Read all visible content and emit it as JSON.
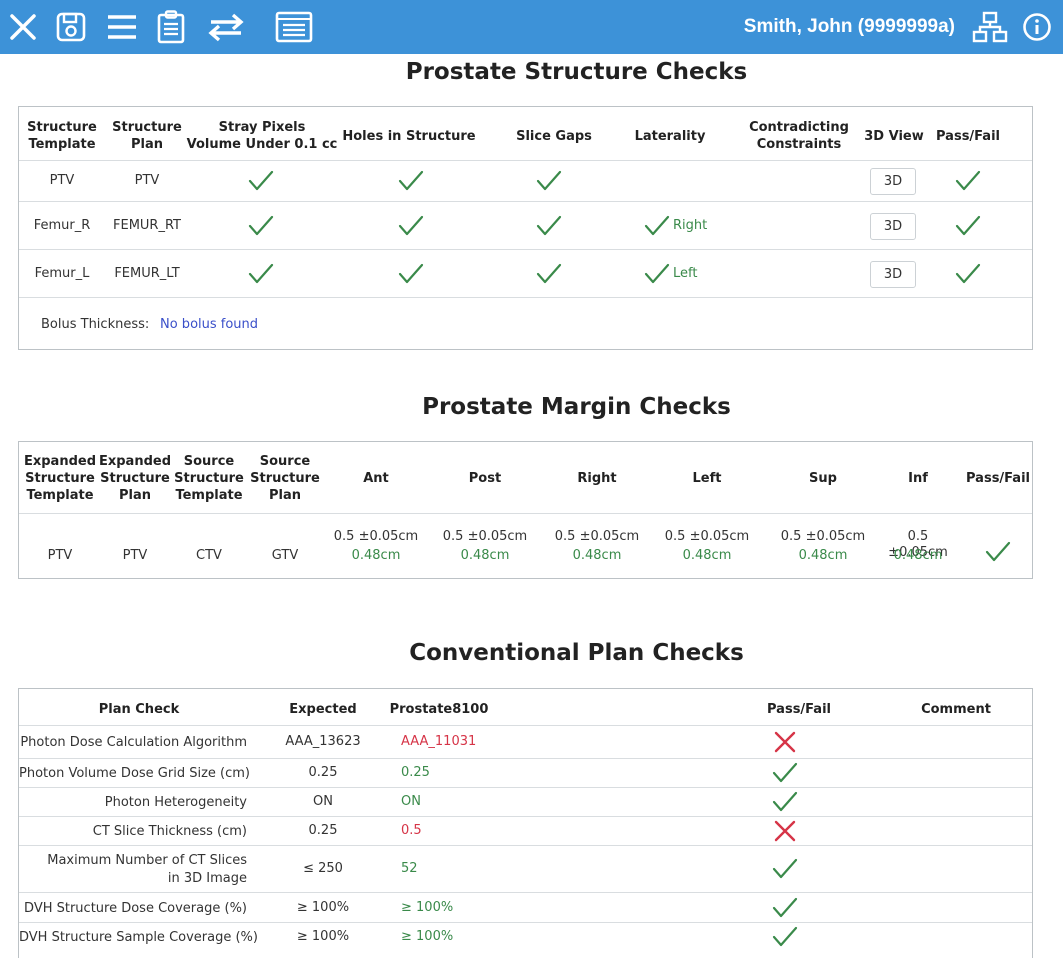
{
  "header": {
    "user": "Smith, John (9999999a)",
    "icons": [
      "close-icon",
      "save-icon",
      "menu-icon",
      "clipboard-icon",
      "swap-icon",
      "list-box-icon",
      "network-icon",
      "info-icon"
    ]
  },
  "structure": {
    "title": "Prostate Structure Checks",
    "headers": [
      "Structure\nTemplate",
      "Structure\nPlan",
      "Stray Pixels\nVolume Under 0.1 cc",
      "Holes in Structure",
      "Slice Gaps",
      "Laterality",
      "Contradicting\nConstraints",
      "3D View",
      "Pass/Fail"
    ],
    "rows": [
      {
        "template": "PTV",
        "plan": "PTV",
        "laterality": "",
        "button": "3D"
      },
      {
        "template": "Femur_R",
        "plan": "FEMUR_RT",
        "laterality": "Right",
        "button": "3D"
      },
      {
        "template": "Femur_L",
        "plan": "FEMUR_LT",
        "laterality": "Left",
        "button": "3D"
      }
    ],
    "bolus_label": "Bolus Thickness:",
    "bolus_value": "No bolus found"
  },
  "margin": {
    "title": "Prostate Margin Checks",
    "headers": [
      "Expanded\nStructure\nTemplate",
      "Expanded\nStructure\nPlan",
      "Source\nStructure\nTemplate",
      "Source\nStructure\nPlan",
      "Ant",
      "Post",
      "Right",
      "Left",
      "Sup",
      "Inf",
      "Pass/Fail"
    ],
    "row": {
      "cells": [
        "PTV",
        "PTV",
        "CTV",
        "GTV"
      ],
      "expected": [
        "0.5 ±0.05cm",
        "0.5 ±0.05cm",
        "0.5 ±0.05cm",
        "0.5 ±0.05cm",
        "0.5 ±0.05cm",
        "0.5 ±0.05cm"
      ],
      "actual": [
        "0.48cm",
        "0.48cm",
        "0.48cm",
        "0.48cm",
        "0.48cm",
        "0.48cm"
      ]
    }
  },
  "plan": {
    "title": "Conventional Plan Checks",
    "headers": [
      "Plan Check",
      "Expected",
      "Prostate8100",
      "Pass/Fail",
      "Comment"
    ],
    "rows": [
      {
        "check": "Photon Dose Calculation Algorithm",
        "expected": "AAA_13623",
        "value": "AAA_11031",
        "pass": false
      },
      {
        "check": "Photon Volume Dose Grid Size (cm)",
        "expected": "0.25",
        "value": "0.25",
        "pass": true
      },
      {
        "check": "Photon Heterogeneity",
        "expected": "ON",
        "value": "ON",
        "pass": true
      },
      {
        "check": "CT Slice Thickness (cm)",
        "expected": "0.25",
        "value": "0.5",
        "pass": false
      },
      {
        "check": "Maximum Number of CT Slices\nin 3D Image",
        "expected": "≤ 250",
        "value": "52",
        "pass": true
      },
      {
        "check": "DVH Structure Dose Coverage (%)",
        "expected": "≥ 100%",
        "value": "≥ 100%",
        "pass": true
      },
      {
        "check": "DVH Structure Sample Coverage (%)",
        "expected": "≥ 100%",
        "value": "≥ 100%",
        "pass": true
      }
    ]
  },
  "colors": {
    "header_bg": "#3d92d8",
    "pass": "#3a8a4a",
    "fail": "#d63447",
    "link": "#3a4fc9"
  }
}
